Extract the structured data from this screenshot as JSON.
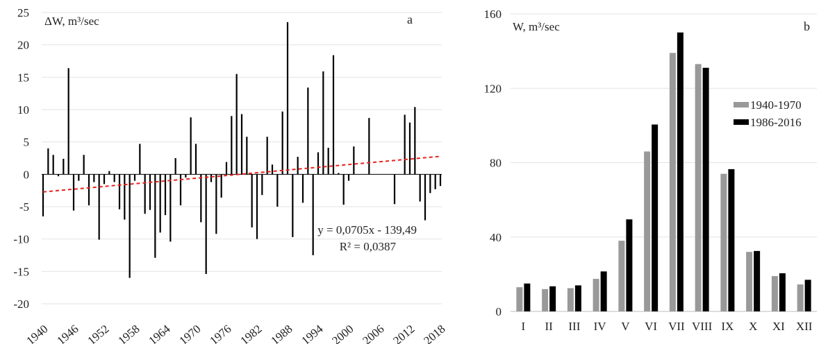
{
  "chart_data": [
    {
      "panel": "a",
      "type": "bar",
      "ylabel": "ΔW, m³/sec",
      "ylim": [
        -20,
        25
      ],
      "yticks": [
        25,
        20,
        15,
        10,
        5,
        0,
        -5,
        -10,
        -15,
        -20
      ],
      "xticks": [
        "1940",
        "1946",
        "1952",
        "1958",
        "1964",
        "1970",
        "1976",
        "1982",
        "1988",
        "1994",
        "2000",
        "2006",
        "2012",
        "2018"
      ],
      "years": [
        1940,
        1941,
        1942,
        1943,
        1944,
        1945,
        1946,
        1947,
        1948,
        1949,
        1950,
        1951,
        1952,
        1953,
        1954,
        1955,
        1956,
        1957,
        1958,
        1959,
        1960,
        1961,
        1962,
        1963,
        1964,
        1965,
        1966,
        1967,
        1968,
        1969,
        1970,
        1971,
        1972,
        1973,
        1974,
        1975,
        1976,
        1977,
        1978,
        1979,
        1980,
        1981,
        1982,
        1983,
        1984,
        1985,
        1986,
        1987,
        1988,
        1989,
        1990,
        1991,
        1992,
        1993,
        1994,
        1995,
        1996,
        1997,
        1998,
        1999,
        2000,
        2001,
        2002,
        2003,
        2004,
        2005,
        2006,
        2007,
        2008,
        2009,
        2010,
        2011,
        2012,
        2013,
        2014,
        2015,
        2016,
        2017,
        2018
      ],
      "values": [
        -6.5,
        4.0,
        3.0,
        -0.3,
        2.4,
        16.4,
        -5.6,
        -1.0,
        3.0,
        -4.8,
        -1.2,
        -10.1,
        -1.5,
        0.5,
        -1.2,
        -5.4,
        -7.0,
        -16.0,
        -1.0,
        4.7,
        -6.1,
        -5.5,
        -12.9,
        -9.0,
        -6.3,
        -10.4,
        2.5,
        -4.8,
        -0.5,
        8.8,
        4.7,
        -7.4,
        -15.4,
        -1.2,
        -9.2,
        -3.6,
        1.9,
        9.0,
        15.5,
        9.3,
        5.8,
        -8.2,
        -10.0,
        -3.2,
        5.8,
        1.5,
        -5.0,
        9.7,
        23.5,
        -9.7,
        2.7,
        -4.4,
        13.4,
        -12.5,
        3.4,
        15.9,
        4.1,
        18.4,
        0.2,
        -4.7,
        -1.0,
        4.3,
        0.0,
        0.0,
        8.7,
        0.0,
        0.0,
        0.0,
        0.0,
        -4.6,
        0.0,
        9.2,
        8.0,
        10.4,
        -4.2,
        -7.1,
        -2.9,
        -2.3,
        -1.8
      ],
      "trend": {
        "equation": "y = 0,0705x - 139,49",
        "r2": "R² = 0,0387",
        "slope": 0.0705,
        "intercept": -139.49,
        "color": "#e8211c"
      },
      "bar_color": "#000000"
    },
    {
      "panel": "b",
      "type": "bar",
      "ylabel": "W, m³/sec",
      "ylim": [
        0,
        160
      ],
      "yticks": [
        160,
        120,
        80,
        40,
        0
      ],
      "categories": [
        "I",
        "II",
        "III",
        "IV",
        "V",
        "VI",
        "VII",
        "VIII",
        "IX",
        "X",
        "XI",
        "XII"
      ],
      "series": [
        {
          "name": "1940-1970",
          "color": "#999999",
          "values": [
            13,
            12,
            12.5,
            17.5,
            38,
            86,
            139,
            133,
            74,
            32,
            19,
            14.5
          ]
        },
        {
          "name": "1986-2016",
          "color": "#000000",
          "values": [
            15,
            13.5,
            14,
            21.5,
            49.5,
            100.5,
            150,
            131,
            76.5,
            32.5,
            20.5,
            17
          ]
        }
      ],
      "legend_position": "right"
    }
  ],
  "labels": {
    "panel_a_letter": "a",
    "panel_b_letter": "b"
  }
}
